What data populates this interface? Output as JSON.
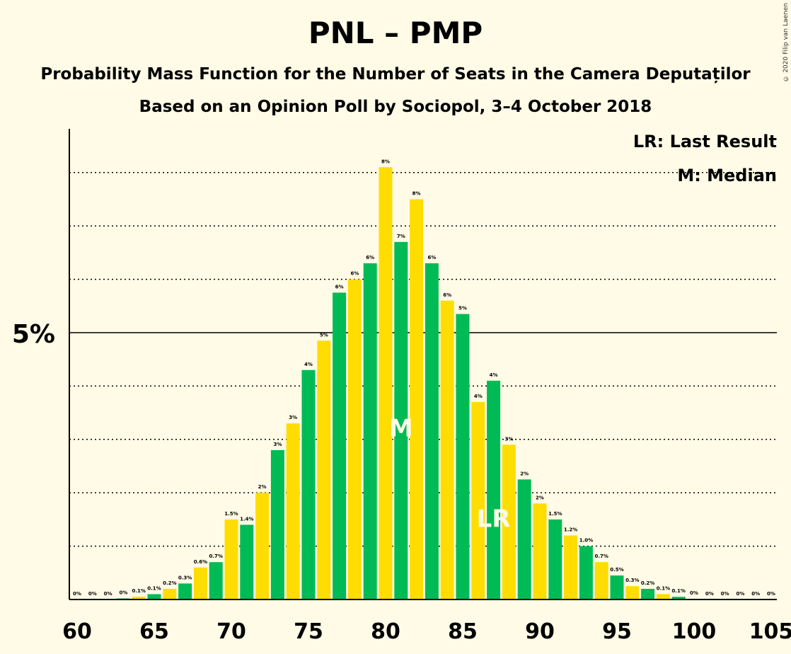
{
  "title": "PNL – PMP",
  "subtitle": "Probability Mass Function for the Number of Seats in the Camera Deputaților",
  "subtitle2": "Based on an Opinion Poll by Sociopol, 3–4 October 2018",
  "copyright": "© 2020 Filip van Laenen",
  "legend": {
    "lr": "LR: Last Result",
    "m": "M: Median"
  },
  "colors": {
    "green": "#00bb55",
    "yellow": "#ffdd00",
    "background": "#fffbe6"
  },
  "chart_data": {
    "type": "bar",
    "x": [
      60,
      61,
      62,
      63,
      64,
      65,
      66,
      67,
      68,
      69,
      70,
      71,
      72,
      73,
      74,
      75,
      76,
      77,
      78,
      79,
      80,
      81,
      82,
      83,
      84,
      85,
      86,
      87,
      88,
      89,
      90,
      91,
      92,
      93,
      94,
      95,
      96,
      97,
      98,
      99,
      100,
      101,
      102,
      103,
      104,
      105
    ],
    "values": [
      0,
      0,
      0,
      0.02,
      0.05,
      0.1,
      0.2,
      0.3,
      0.6,
      0.7,
      1.5,
      1.4,
      2.0,
      2.8,
      3.3,
      4.3,
      4.85,
      5.75,
      6.0,
      6.3,
      8.1,
      6.7,
      7.5,
      6.3,
      5.6,
      5.35,
      3.7,
      4.1,
      2.9,
      2.25,
      1.8,
      1.5,
      1.2,
      1.0,
      0.7,
      0.45,
      0.25,
      0.2,
      0.1,
      0.05,
      0.01,
      0,
      0,
      0,
      0,
      0
    ],
    "value_labels": [
      "0%",
      "0%",
      "0%",
      "0%",
      "0.1%",
      "0.1%",
      "0.2%",
      "0.3%",
      "0.6%",
      "0.7%",
      "1.5%",
      "1.4%",
      "2%",
      "3%",
      "3%",
      "4%",
      "5%",
      "6%",
      "6%",
      "6%",
      "8%",
      "7%",
      "8%",
      "6%",
      "6%",
      "5%",
      "4%",
      "4%",
      "3%",
      "2%",
      "2%",
      "1.5%",
      "1.2%",
      "1.0%",
      "0.7%",
      "0.5%",
      "0.3%",
      "0.2%",
      "0.1%",
      "0.1%",
      "0%",
      "0%",
      "0%",
      "0%",
      "0%",
      "0%"
    ],
    "x_ticks": [
      "60",
      "65",
      "70",
      "75",
      "80",
      "85",
      "90",
      "95",
      "100",
      "105"
    ],
    "y_tick_label": "5%",
    "y_tick_value": 5,
    "ylim": [
      0,
      8.8
    ],
    "median": 81,
    "median_label": "M",
    "last_result": 87,
    "last_result_label": "LR",
    "grid": "dotted"
  }
}
